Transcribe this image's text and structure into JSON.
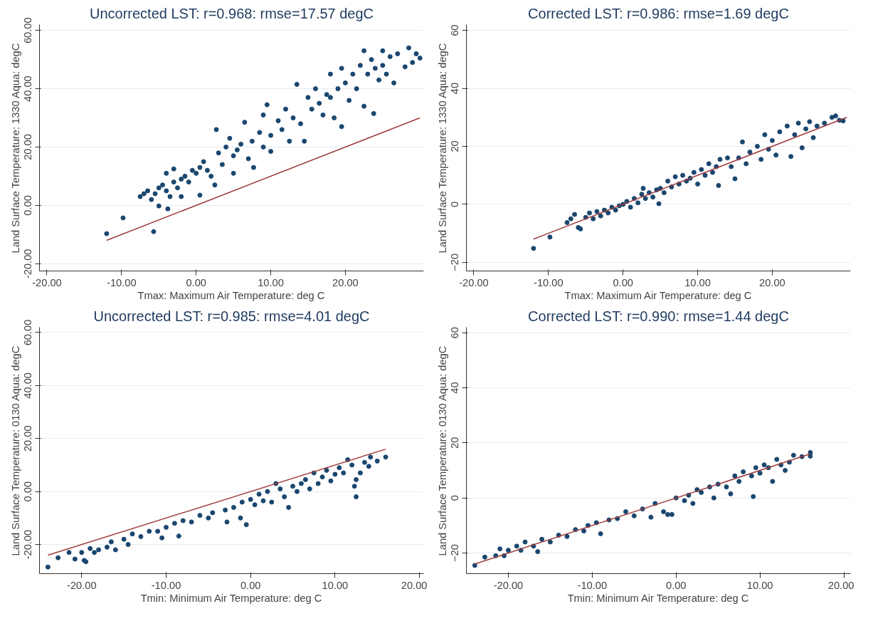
{
  "chart_data": [
    {
      "type": "scatter",
      "title": "Uncorrected LST: r=0.968: rmse=17.57 degC",
      "xlabel": "Tmax: Maximum Air Temperature: deg C",
      "ylabel": "Land Surface Temperature: 1330 Aqua: degC",
      "xlim": [
        -21,
        30.5
      ],
      "ylim": [
        -22.5,
        62
      ],
      "xticks": [
        {
          "value": -20,
          "label": "-20.00"
        },
        {
          "value": -10,
          "label": "-10.00"
        },
        {
          "value": 0,
          "label": "0.00"
        },
        {
          "value": 10,
          "label": "10.00"
        },
        {
          "value": 20,
          "label": "20.00"
        }
      ],
      "yticks": [
        {
          "value": -20,
          "label": "-20.00"
        },
        {
          "value": 0,
          "label": "0.00"
        },
        {
          "value": 20,
          "label": "20.00"
        },
        {
          "value": 40,
          "label": "40.00"
        },
        {
          "value": 60,
          "label": "60.00"
        }
      ],
      "grid": "y",
      "marker": "circle",
      "series": [
        {
          "color": "#1a476f",
          "x": [
            -12,
            -9.8,
            -5.7,
            -7.5,
            -7,
            -6.5,
            -6,
            -5.5,
            -5,
            -5,
            -4.5,
            -4,
            -4,
            -3.8,
            -3.5,
            -3,
            -3,
            -2.5,
            -2,
            -2,
            -1.5,
            -1,
            -0.5,
            0,
            0.5,
            0.5,
            1,
            1.5,
            2,
            2.5,
            2.7,
            3,
            3.5,
            4,
            4.5,
            5,
            5,
            5.5,
            6,
            6.5,
            7,
            7.5,
            7.7,
            8.5,
            9,
            9,
            9.5,
            10,
            10,
            11,
            11.5,
            12,
            12.5,
            13,
            13.5,
            14,
            14.5,
            15,
            15.5,
            16,
            16.5,
            17,
            17.5,
            18,
            18,
            18.5,
            19,
            19.5,
            19.5,
            20,
            20.5,
            21,
            21.5,
            22,
            22.5,
            22.5,
            23,
            23.5,
            23.8,
            24,
            24.5,
            25,
            25,
            25.5,
            26,
            26.5,
            27,
            28,
            28.5,
            29,
            29.5,
            30
          ],
          "values": [
            -9.7,
            -4.3,
            -9,
            3,
            4,
            5,
            2,
            4,
            6,
            -0.2,
            7,
            5,
            11,
            -1.2,
            3,
            8,
            12.5,
            6,
            9,
            3,
            10,
            8,
            12,
            11,
            13,
            3.5,
            15,
            12,
            10,
            7,
            26,
            18,
            14,
            20,
            23,
            17,
            11,
            19,
            21,
            28.5,
            16,
            22,
            13,
            25,
            31,
            20,
            34.5,
            24,
            18.5,
            29,
            26,
            33,
            22,
            30,
            41.5,
            28,
            22,
            37,
            33,
            40,
            35,
            31,
            38,
            45,
            37,
            30,
            40,
            27,
            47,
            42,
            36,
            45,
            40,
            48,
            53,
            34,
            45,
            50,
            31.5,
            47,
            43,
            53,
            48,
            45,
            51,
            42,
            52,
            47.5,
            54,
            49,
            52,
            50.5
          ]
        },
        {
          "type": "line",
          "marker": "none",
          "color": "#a03c3c",
          "x": [
            -12,
            30
          ],
          "values": [
            -12,
            30
          ]
        }
      ]
    },
    {
      "type": "scatter",
      "title": "Corrected LST: r=0.986: rmse=1.69 degC",
      "xlabel": "Tmax: Maximum Air Temperature: deg C",
      "ylabel": "Land Surface Temperature: 1330 Aqua: degC",
      "xlim": [
        -21,
        30.5
      ],
      "ylim": [
        -23,
        62
      ],
      "xticks": [
        {
          "value": -20,
          "label": "-20.00"
        },
        {
          "value": -10,
          "label": "-10.00"
        },
        {
          "value": 0,
          "label": "0.00"
        },
        {
          "value": 10,
          "label": "10.00"
        },
        {
          "value": 20,
          "label": "20.00"
        }
      ],
      "yticks": [
        -20,
        0,
        20,
        40,
        60
      ],
      "grid": "y",
      "marker": "circle",
      "series": [
        {
          "color": "#1a476f",
          "x": [
            -12,
            -9.8,
            -7.5,
            -7,
            -6.5,
            -6,
            -5.7,
            -5,
            -4.5,
            -4,
            -3.5,
            -3,
            -2.5,
            -2,
            -1.5,
            -1,
            -0.5,
            0,
            0.5,
            1,
            1.5,
            2,
            2.5,
            2.7,
            3,
            3.5,
            4,
            4.5,
            4.8,
            5,
            5.5,
            6,
            6.5,
            7,
            7.5,
            8,
            8.5,
            9,
            9.5,
            10,
            10.5,
            11,
            11.5,
            12,
            12.5,
            12.8,
            13,
            14,
            14.5,
            15,
            15.5,
            16,
            16.5,
            17,
            18,
            18.5,
            19,
            19.5,
            20,
            20.5,
            21,
            22,
            22.5,
            23,
            23.5,
            24,
            24.5,
            25,
            25.5,
            26,
            27,
            28,
            28.5,
            29,
            29.5
          ],
          "values": [
            -15.2,
            -11.3,
            -6.3,
            -5,
            -3.5,
            -8,
            -8.5,
            -4.5,
            -3,
            -5,
            -2.5,
            -4,
            -2,
            -3,
            -1,
            -2,
            -0.5,
            0,
            1,
            -1,
            2,
            0.5,
            3.5,
            5.5,
            2,
            4,
            2.5,
            5,
            0.2,
            5.5,
            4,
            8,
            6,
            9.5,
            7,
            10,
            8,
            9,
            11,
            7,
            12,
            10,
            14,
            11,
            13,
            6.5,
            15.5,
            16,
            13,
            8.8,
            16,
            21.5,
            14,
            18,
            20,
            15.5,
            24,
            19,
            22,
            17,
            25,
            27,
            16.5,
            24,
            28,
            19.5,
            26,
            28.5,
            23,
            27,
            28,
            30,
            30.5,
            29,
            28.8
          ]
        },
        {
          "type": "line",
          "marker": "none",
          "color": "#a03c3c",
          "x": [
            -12,
            30
          ],
          "values": [
            -12,
            30
          ]
        }
      ]
    },
    {
      "type": "scatter",
      "title": "Uncorrected LST: r=0.985: rmse=4.01 degC",
      "xlabel": "Tmin: Minimum Air Temperature: deg C",
      "ylabel": "Land Surface Temperature: 0130 Aqua: degC",
      "xlim": [
        -25,
        20.5
      ],
      "ylim": [
        -31,
        62
      ],
      "xticks": [
        {
          "value": -20,
          "label": "-20.00"
        },
        {
          "value": -10,
          "label": "-10.00"
        },
        {
          "value": 0,
          "label": "0.00"
        },
        {
          "value": 10,
          "label": "10.00"
        },
        {
          "value": 20,
          "label": "20.00"
        }
      ],
      "yticks": [
        {
          "value": -20,
          "label": "-20.00"
        },
        {
          "value": 0,
          "label": "0.00"
        },
        {
          "value": 20,
          "label": "20.00"
        },
        {
          "value": 40,
          "label": "40.00"
        },
        {
          "value": 60,
          "label": "60.00"
        }
      ],
      "grid": "y",
      "marker": "circle",
      "series": [
        {
          "color": "#1a476f",
          "x": [
            -24,
            -22.8,
            -21.5,
            -20.8,
            -20,
            -19.7,
            -19.5,
            -19,
            -18.5,
            -18,
            -17,
            -16.5,
            -16,
            -15,
            -14.5,
            -14,
            -13,
            -12,
            -11,
            -10.5,
            -10,
            -9,
            -8.5,
            -8,
            -7,
            -6,
            -5,
            -4.5,
            -3,
            -2.8,
            -2,
            -1.2,
            -1,
            -0.5,
            0,
            0.5,
            1,
            1.5,
            2,
            2.5,
            3,
            3.5,
            4,
            4.5,
            5,
            5.5,
            6,
            6.5,
            7,
            7.5,
            8,
            8.5,
            9,
            9.5,
            10,
            10.5,
            11,
            11.5,
            12,
            12.3,
            12.5,
            12.5,
            13,
            13.5,
            14,
            14.2,
            15,
            16
          ],
          "values": [
            -28.5,
            -25,
            -23,
            -25.5,
            -23,
            -26,
            -26.5,
            -21.5,
            -23,
            -22,
            -21,
            -19,
            -22,
            -18,
            -20,
            -16,
            -17,
            -15,
            -15,
            -17.5,
            -13.5,
            -12,
            -16.8,
            -11,
            -11.5,
            -9,
            -10,
            -8,
            -7,
            -11.5,
            -6,
            -10,
            -4,
            -12.5,
            -3,
            -5,
            -1,
            -3.5,
            0,
            -4,
            3,
            1,
            -2,
            -6,
            2,
            0,
            3,
            4.5,
            1,
            7,
            3,
            5.5,
            8,
            4,
            6.5,
            9,
            7,
            12,
            10,
            2,
            -2,
            4.5,
            7,
            11,
            9.5,
            13,
            11.5,
            13
          ]
        },
        {
          "type": "line",
          "marker": "none",
          "color": "#a03c3c",
          "x": [
            -24,
            16
          ],
          "values": [
            -24,
            16
          ]
        }
      ]
    },
    {
      "type": "scatter",
      "title": "Corrected LST: r=0.990: rmse=1.44 degC",
      "xlabel": "Tmin: Minimum Air Temperature: deg C",
      "ylabel": "Land Surface Temperature: 0130 Aqua: degC",
      "xlim": [
        -25,
        20.8
      ],
      "ylim": [
        -27.5,
        62
      ],
      "xticks": [
        {
          "value": -20,
          "label": "-20.00"
        },
        {
          "value": -10,
          "label": "-10.00"
        },
        {
          "value": 0,
          "label": "0.00"
        },
        {
          "value": 10,
          "label": "10.00"
        },
        {
          "value": 20,
          "label": "20.00"
        }
      ],
      "yticks": [
        -20,
        0,
        20,
        40,
        60
      ],
      "grid": "y",
      "marker": "circle",
      "series": [
        {
          "color": "#1a476f",
          "x": [
            -24,
            -22.8,
            -21.5,
            -21,
            -20.5,
            -20,
            -19,
            -18.5,
            -18,
            -17,
            -16.5,
            -16,
            -15,
            -14,
            -13,
            -12,
            -11,
            -10.5,
            -9.5,
            -9,
            -8,
            -7,
            -6,
            -5,
            -4,
            -3,
            -2.5,
            -1.5,
            -1,
            -0.5,
            0,
            1,
            1.5,
            2,
            2.5,
            3,
            4,
            4.5,
            5,
            6,
            6.5,
            7,
            7.5,
            8,
            9,
            9.2,
            9.5,
            10,
            10.5,
            11,
            11.5,
            12,
            12.5,
            13,
            13.5,
            14,
            15,
            16,
            16
          ],
          "values": [
            -24.5,
            -21.5,
            -21,
            -18.5,
            -21,
            -19,
            -17.5,
            -19,
            -16,
            -17.5,
            -19.5,
            -15,
            -16,
            -13.5,
            -14,
            -11.5,
            -12,
            -10,
            -9,
            -13,
            -8,
            -7.5,
            -5,
            -6.5,
            -4,
            -7,
            -2,
            -5,
            -6,
            -6,
            0,
            -1,
            1,
            -2,
            3,
            2,
            4,
            0,
            5,
            4,
            1.5,
            8,
            6,
            9.5,
            8,
            0.5,
            11,
            9,
            12,
            11,
            6,
            14,
            12,
            10,
            13,
            15.5,
            15,
            16.5,
            15.2
          ]
        },
        {
          "type": "line",
          "marker": "none",
          "color": "#a03c3c",
          "x": [
            -24,
            16
          ],
          "values": [
            -24,
            16
          ]
        }
      ]
    }
  ]
}
